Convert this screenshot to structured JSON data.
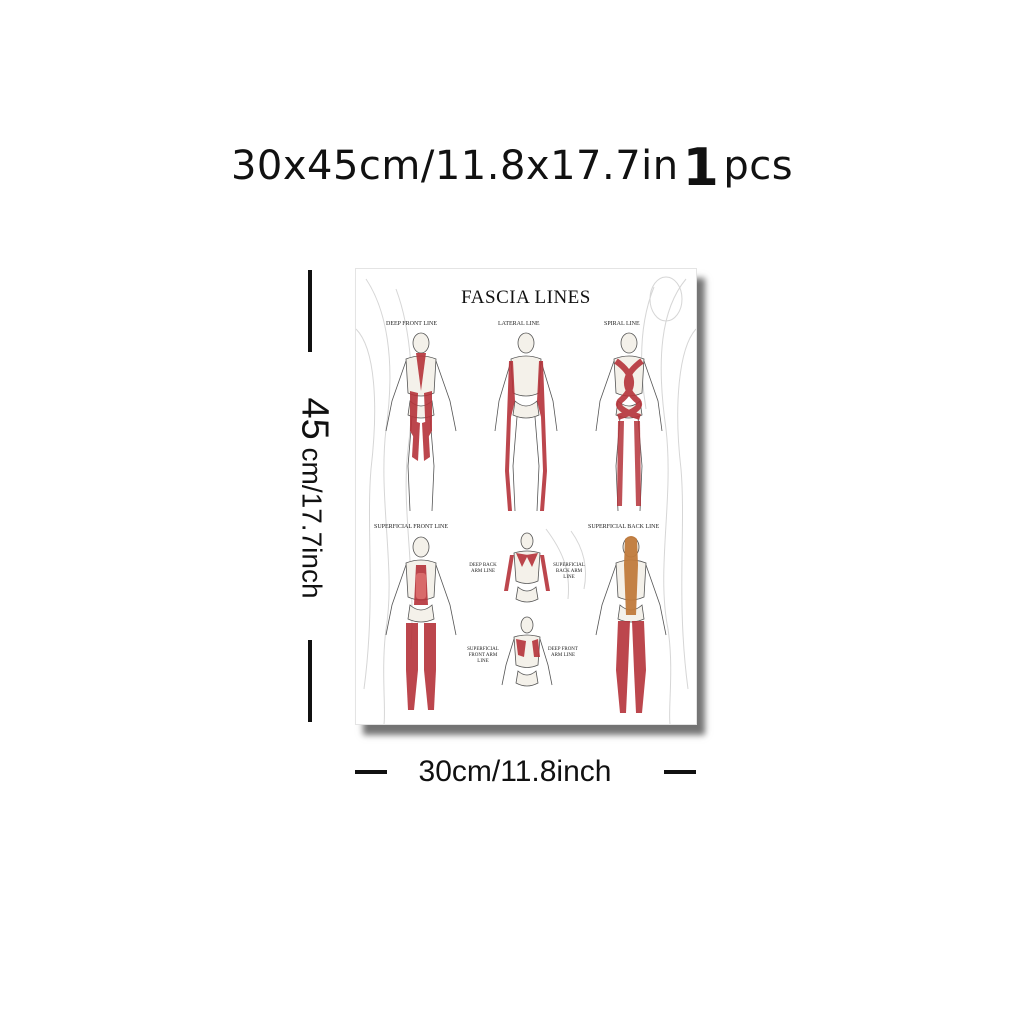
{
  "headline": {
    "size": "30x45cm/11.8x17.7in",
    "quantity": "1",
    "unit": "pcs"
  },
  "poster": {
    "title": "FASCIA LINES",
    "labels": {
      "deep_front_line": "DEEP FRONT LINE",
      "lateral_line": "LATERAL LINE",
      "spiral_line": "SPIRAL LINE",
      "superficial_front_line": "SUPERFICIAL FRONT LINE",
      "superficial_back_line": "SUPERFICIAL BACK LINE",
      "deep_back_arm_line": "DEEP BACK ARM LINE",
      "superficial_back_arm_line": "SUPERFICIAL BACK ARM LINE",
      "superficial_front_arm_line": "SUPERFICIAL FRONT ARM LINE",
      "deep_front_arm_line": "DEEP FRONT ARM LINE"
    },
    "colors": {
      "muscle": "#b5333a",
      "muscle_light": "#d86a6a",
      "bone": "#f4f1ea",
      "outline": "#555555",
      "tendon": "#c07a3c"
    }
  },
  "dimensions": {
    "height_number": "45",
    "height_text": "cm/17.7inch",
    "width_text": "30cm/11.8inch"
  }
}
